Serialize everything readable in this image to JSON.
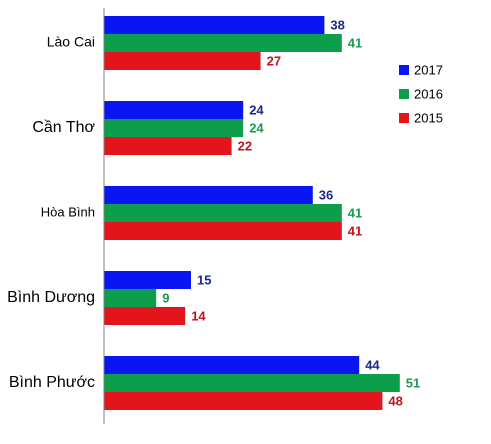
{
  "chart_data": {
    "type": "bar",
    "orientation": "horizontal",
    "categories": [
      "Lào Cai",
      "Cần Thơ",
      "Hòa Bình",
      "Bình Dương",
      "Bình Phước"
    ],
    "series": [
      {
        "name": "2017",
        "color": "#0a16f2",
        "values": [
          38,
          24,
          36,
          15,
          44
        ]
      },
      {
        "name": "2016",
        "color": "#0c9e4a",
        "values": [
          41,
          24,
          41,
          9,
          51
        ]
      },
      {
        "name": "2015",
        "color": "#e3141c",
        "values": [
          27,
          22,
          41,
          14,
          48
        ]
      }
    ],
    "label_colors": {
      "2017": "#1a2a8c",
      "2016": "#1e9a50",
      "2015": "#c0141c"
    },
    "xlim": [
      0,
      55
    ],
    "grid": false,
    "data_labels": true,
    "legend_position": "right",
    "legend_order": [
      "2017",
      "2016",
      "2015"
    ],
    "title": "",
    "xlabel": "",
    "ylabel": ""
  }
}
